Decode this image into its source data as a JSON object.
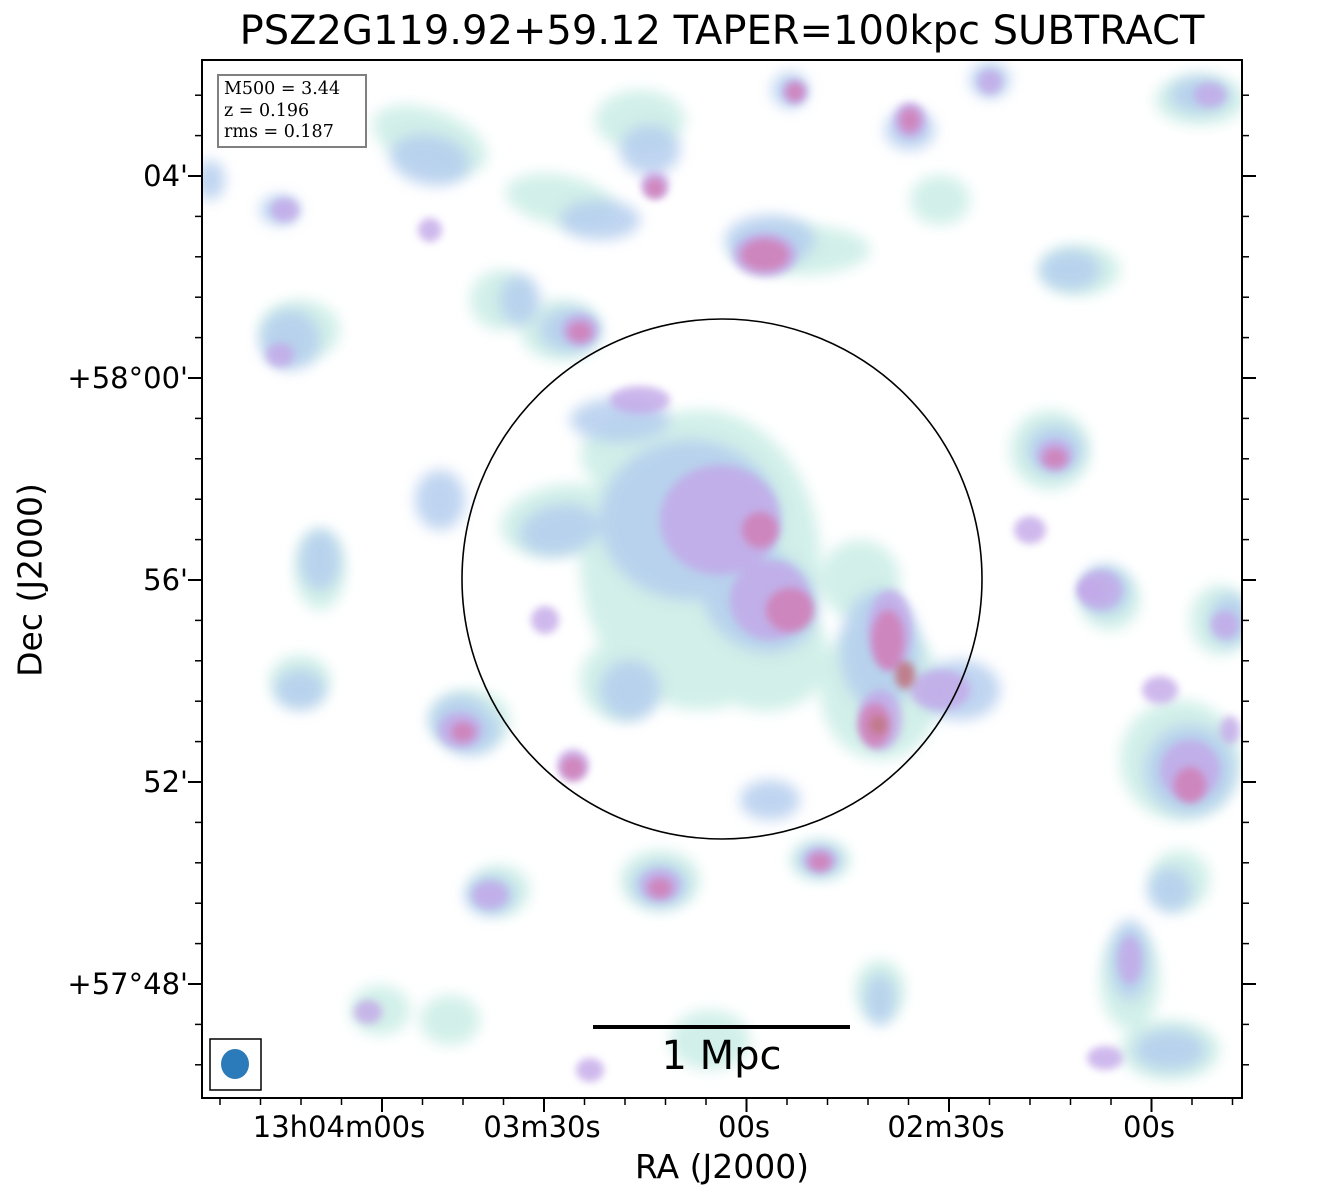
{
  "figure": {
    "title": "PSZ2G119.92+59.12 TAPER=100kpc SUBTRACT",
    "xlabel": "RA (J2000)",
    "ylabel": "Dec (J2000)",
    "x_ticks": [
      "13h04m00s",
      "03m30s",
      "00s",
      "02m30s",
      "00s"
    ],
    "y_ticks": [
      "04'",
      "+58°00'",
      "56'",
      "52'",
      "+57°48'"
    ]
  },
  "info_box": {
    "lines": [
      "M500 = 3.44",
      "z = 0.196",
      "rms = 0.187"
    ]
  },
  "scale_bar": {
    "label": "1 Mpc"
  },
  "colors": {
    "faint": "#cdeee7",
    "low": "#b4cdee",
    "mid": "#c3a7e8",
    "high": "#d07fb6",
    "peak": "#c0707a",
    "beam": "#2b7bba",
    "circle": "#000000"
  }
}
